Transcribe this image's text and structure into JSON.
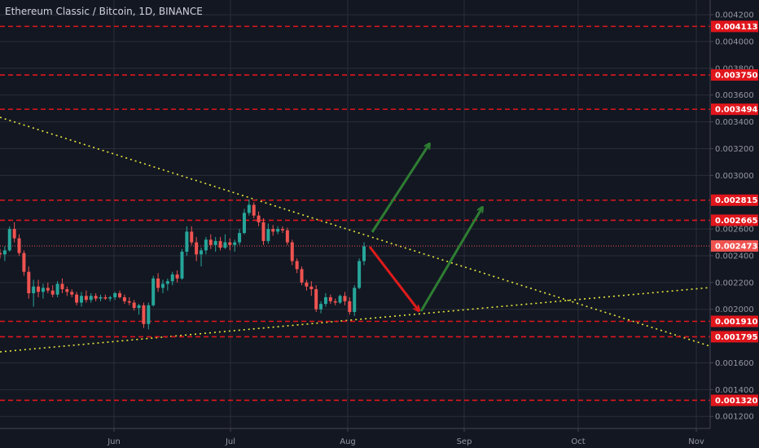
{
  "header": {
    "title": "Ethereum Classic / Bitcoin, 1D, BINANCE"
  },
  "colors": {
    "background": "#131722",
    "up": "#26a69a",
    "down": "#ef5350",
    "level": "#e0161c",
    "trendline": "#e8e83a",
    "arrow_up": "#2e7d32",
    "arrow_down": "#e01b1b"
  },
  "chart_data": {
    "type": "candlestick",
    "title": "Ethereum Classic / Bitcoin, 1D, BINANCE",
    "x_tick_labels": [
      "Jun",
      "Jul",
      "Aug",
      "Sep",
      "Oct",
      "Nov"
    ],
    "y_tick_labels": [
      "0.004200",
      "0.004000",
      "0.003800",
      "0.003600",
      "0.003400",
      "0.003200",
      "0.003000",
      "0.002600",
      "0.002400",
      "0.002200",
      "0.002000",
      "0.001600",
      "0.001400",
      "0.001200"
    ],
    "ylim": [
      0.00111,
      0.00431
    ],
    "grid": true,
    "current_price": "0.002473",
    "levels": [
      "0.004113",
      "0.003750",
      "0.003494",
      "0.002815",
      "0.002665",
      "0.001910",
      "0.001795",
      "0.001320"
    ],
    "candles": [
      [
        0.00242,
        0.00245,
        0.00238,
        0.00241
      ],
      [
        0.00241,
        0.00247,
        0.00236,
        0.00244
      ],
      [
        0.00244,
        0.00262,
        0.00243,
        0.0026
      ],
      [
        0.0026,
        0.00265,
        0.0025,
        0.00253
      ],
      [
        0.00253,
        0.00256,
        0.0024,
        0.00242
      ],
      [
        0.00242,
        0.00244,
        0.00225,
        0.00228
      ],
      [
        0.00228,
        0.00232,
        0.00208,
        0.00212
      ],
      [
        0.00212,
        0.00222,
        0.00202,
        0.00217
      ],
      [
        0.00217,
        0.00222,
        0.00209,
        0.00213
      ],
      [
        0.00213,
        0.00219,
        0.00208,
        0.00216
      ],
      [
        0.00216,
        0.0022,
        0.00212,
        0.00214
      ],
      [
        0.00214,
        0.00218,
        0.00209,
        0.00211
      ],
      [
        0.00211,
        0.00221,
        0.00209,
        0.00219
      ],
      [
        0.00219,
        0.00223,
        0.00212,
        0.00215
      ],
      [
        0.00215,
        0.00217,
        0.0021,
        0.00213
      ],
      [
        0.00213,
        0.00215,
        0.00209,
        0.00211
      ],
      [
        0.00211,
        0.00213,
        0.00203,
        0.00205
      ],
      [
        0.00205,
        0.00213,
        0.00202,
        0.0021
      ],
      [
        0.0021,
        0.00214,
        0.00205,
        0.00207
      ],
      [
        0.00207,
        0.00212,
        0.00205,
        0.0021
      ],
      [
        0.0021,
        0.00212,
        0.00206,
        0.00208
      ],
      [
        0.00208,
        0.00211,
        0.00206,
        0.00209
      ],
      [
        0.00209,
        0.00211,
        0.00207,
        0.00208
      ],
      [
        0.00208,
        0.0021,
        0.00206,
        0.00209
      ],
      [
        0.00209,
        0.00213,
        0.00207,
        0.00212
      ],
      [
        0.00212,
        0.00214,
        0.00208,
        0.00209
      ],
      [
        0.00209,
        0.00211,
        0.00204,
        0.00206
      ],
      [
        0.00206,
        0.00209,
        0.00203,
        0.00205
      ],
      [
        0.00205,
        0.00207,
        0.00199,
        0.00201
      ],
      [
        0.00201,
        0.00204,
        0.00196,
        0.00203
      ],
      [
        0.00203,
        0.00205,
        0.00186,
        0.00189
      ],
      [
        0.00189,
        0.00205,
        0.00185,
        0.00203
      ],
      [
        0.00203,
        0.00225,
        0.00202,
        0.00223
      ],
      [
        0.00223,
        0.00227,
        0.00213,
        0.00216
      ],
      [
        0.00216,
        0.00222,
        0.00212,
        0.00219
      ],
      [
        0.00219,
        0.00223,
        0.00214,
        0.00221
      ],
      [
        0.00221,
        0.00228,
        0.00218,
        0.00226
      ],
      [
        0.00226,
        0.00229,
        0.0022,
        0.00223
      ],
      [
        0.00223,
        0.00245,
        0.00222,
        0.00243
      ],
      [
        0.00243,
        0.00262,
        0.0024,
        0.00258
      ],
      [
        0.00258,
        0.00262,
        0.00248,
        0.0025
      ],
      [
        0.0025,
        0.00254,
        0.00236,
        0.00241
      ],
      [
        0.00241,
        0.00246,
        0.00232,
        0.00244
      ],
      [
        0.00244,
        0.00254,
        0.00241,
        0.00252
      ],
      [
        0.00252,
        0.00256,
        0.00245,
        0.00248
      ],
      [
        0.00248,
        0.00254,
        0.00243,
        0.00251
      ],
      [
        0.00251,
        0.00254,
        0.00244,
        0.00246
      ],
      [
        0.00246,
        0.00256,
        0.00245,
        0.0025
      ],
      [
        0.0025,
        0.00253,
        0.00244,
        0.00248
      ],
      [
        0.00248,
        0.00252,
        0.00243,
        0.0025
      ],
      [
        0.0025,
        0.0026,
        0.00248,
        0.00257
      ],
      [
        0.00257,
        0.00275,
        0.00256,
        0.00272
      ],
      [
        0.00272,
        0.00282,
        0.0027,
        0.00278
      ],
      [
        0.00278,
        0.0028,
        0.00268,
        0.0027
      ],
      [
        0.0027,
        0.00273,
        0.00262,
        0.00265
      ],
      [
        0.00265,
        0.00268,
        0.00248,
        0.00251
      ],
      [
        0.00251,
        0.00264,
        0.00249,
        0.0026
      ],
      [
        0.0026,
        0.00263,
        0.00255,
        0.00258
      ],
      [
        0.00258,
        0.00262,
        0.00256,
        0.0026
      ],
      [
        0.0026,
        0.00262,
        0.00257,
        0.00259
      ],
      [
        0.00259,
        0.00261,
        0.00248,
        0.0025
      ],
      [
        0.0025,
        0.00252,
        0.00233,
        0.00236
      ],
      [
        0.00236,
        0.00238,
        0.00227,
        0.0023
      ],
      [
        0.0023,
        0.00232,
        0.00218,
        0.0022
      ],
      [
        0.0022,
        0.00222,
        0.00214,
        0.00217
      ],
      [
        0.00217,
        0.00221,
        0.0021,
        0.00215
      ],
      [
        0.00215,
        0.00218,
        0.00198,
        0.002
      ],
      [
        0.002,
        0.00206,
        0.00197,
        0.00204
      ],
      [
        0.00204,
        0.00212,
        0.00202,
        0.00209
      ],
      [
        0.00209,
        0.00211,
        0.00204,
        0.00206
      ],
      [
        0.00206,
        0.00208,
        0.00203,
        0.00205
      ],
      [
        0.00205,
        0.00211,
        0.00204,
        0.0021
      ],
      [
        0.0021,
        0.00213,
        0.00203,
        0.00206
      ],
      [
        0.00206,
        0.00209,
        0.00196,
        0.00198
      ],
      [
        0.00198,
        0.00218,
        0.00195,
        0.00216
      ],
      [
        0.00216,
        0.00238,
        0.00215,
        0.00236
      ],
      [
        0.00236,
        0.0025,
        0.00233,
        0.00247
      ]
    ]
  }
}
